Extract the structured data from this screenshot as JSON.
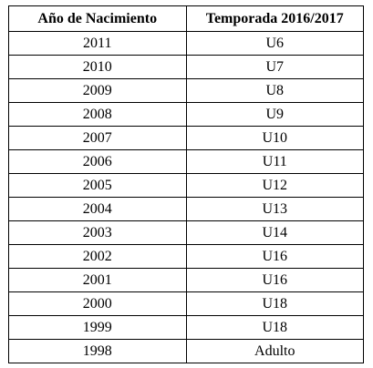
{
  "table": {
    "headers": [
      "Año de Nacimiento",
      "Temporada 2016/2017"
    ],
    "rows": [
      [
        "2011",
        "U6"
      ],
      [
        "2010",
        "U7"
      ],
      [
        "2009",
        "U8"
      ],
      [
        "2008",
        "U9"
      ],
      [
        "2007",
        "U10"
      ],
      [
        "2006",
        "U11"
      ],
      [
        "2005",
        "U12"
      ],
      [
        "2004",
        "U13"
      ],
      [
        "2003",
        "U14"
      ],
      [
        "2002",
        "U16"
      ],
      [
        "2001",
        "U16"
      ],
      [
        "2000",
        "U18"
      ],
      [
        "1999",
        "U18"
      ],
      [
        "1998",
        "Adulto"
      ]
    ]
  }
}
